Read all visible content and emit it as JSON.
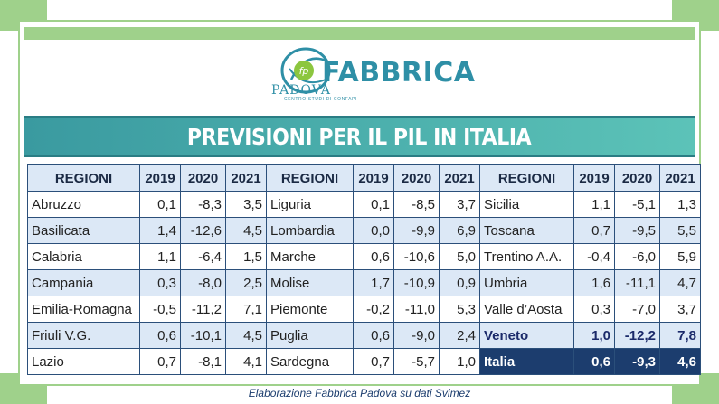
{
  "logo": {
    "brand": "FABBRICA",
    "city": "PADOVA",
    "tagline": "CENTRO STUDI DI CONFAPI",
    "monogram": "fp"
  },
  "title": "PREVISIONI PER IL PIL IN ITALIA",
  "table": {
    "headers": [
      "REGIONI",
      "2019",
      "2020",
      "2021"
    ],
    "rows": [
      [
        [
          "Abruzzo",
          "0,1",
          "-8,3",
          "3,5"
        ],
        [
          "Liguria",
          "0,1",
          "-8,5",
          "3,7"
        ],
        [
          "Sicilia",
          "1,1",
          "-5,1",
          "1,3"
        ]
      ],
      [
        [
          "Basilicata",
          "1,4",
          "-12,6",
          "4,5"
        ],
        [
          "Lombardia",
          "0,0",
          "-9,9",
          "6,9"
        ],
        [
          "Toscana",
          "0,7",
          "-9,5",
          "5,5"
        ]
      ],
      [
        [
          "Calabria",
          "1,1",
          "-6,4",
          "1,5"
        ],
        [
          "Marche",
          "0,6",
          "-10,6",
          "5,0"
        ],
        [
          "Trentino A.A.",
          "-0,4",
          "-6,0",
          "5,9"
        ]
      ],
      [
        [
          "Campania",
          "0,3",
          "-8,0",
          "2,5"
        ],
        [
          "Molise",
          "1,7",
          "-10,9",
          "0,9"
        ],
        [
          "Umbria",
          "1,6",
          "-11,1",
          "4,7"
        ]
      ],
      [
        [
          "Emilia-Romagna",
          "-0,5",
          "-11,2",
          "7,1"
        ],
        [
          "Piemonte",
          "-0,2",
          "-11,0",
          "5,3"
        ],
        [
          "Valle d’Aosta",
          "0,3",
          "-7,0",
          "3,7"
        ]
      ],
      [
        [
          "Friuli V.G.",
          "0,6",
          "-10,1",
          "4,5"
        ],
        [
          "Puglia",
          "0,6",
          "-9,0",
          "2,4"
        ],
        [
          "Veneto",
          "1,0",
          "-12,2",
          "7,8"
        ]
      ],
      [
        [
          "Lazio",
          "0,7",
          "-8,1",
          "4,1"
        ],
        [
          "Sardegna",
          "0,7",
          "-5,7",
          "1,0"
        ],
        [
          "Italia",
          "0,6",
          "-9,3",
          "4,6"
        ]
      ]
    ]
  },
  "footer": "Elaborazione Fabbrica Padova su dati Svimez",
  "colors": {
    "accent_green": "#9fd18b",
    "title_teal": "#4fb3ad",
    "table_blue": "#dce8f6",
    "navy": "#1c3d6e"
  }
}
